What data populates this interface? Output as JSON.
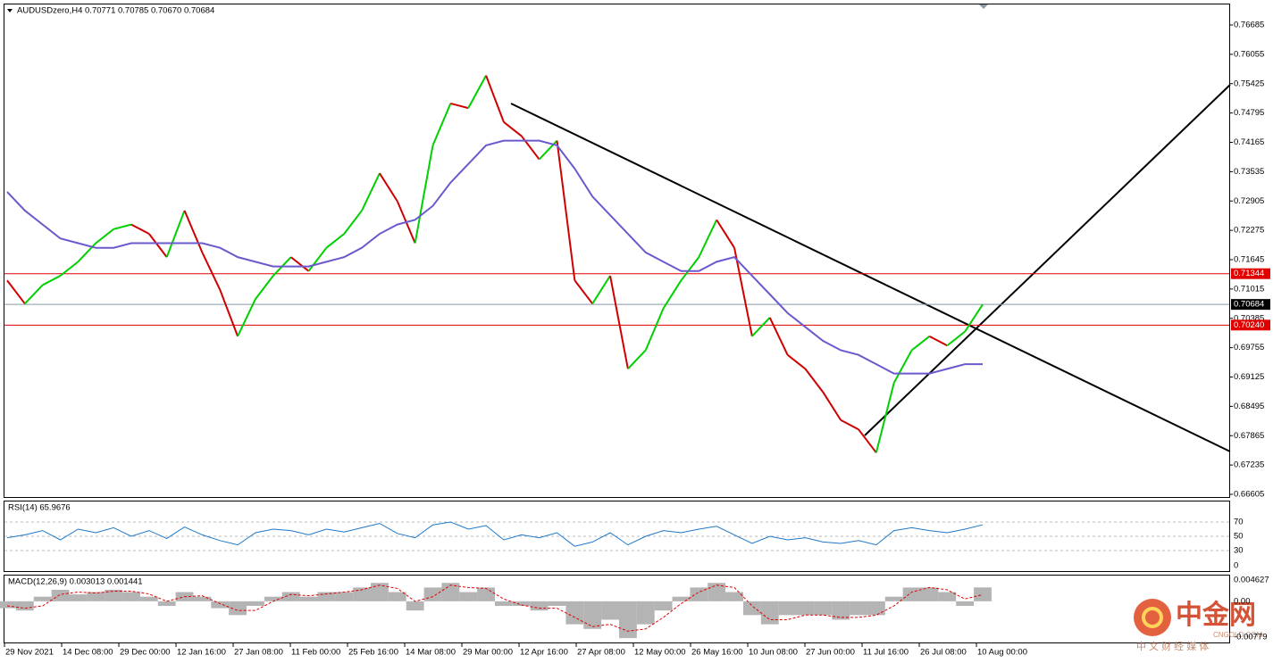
{
  "header": {
    "symbol": "AUDUSDzero,H4  0.70771 0.70785 0.70670 0.70684"
  },
  "main": {
    "ylim": [
      0.66605,
      0.76685
    ],
    "yticks": [
      0.76685,
      0.76055,
      0.75425,
      0.74795,
      0.74165,
      0.73535,
      0.72905,
      0.72275,
      0.71645,
      0.71015,
      0.70385,
      0.69755,
      0.69125,
      0.68495,
      0.67865,
      0.67235,
      0.66605
    ],
    "price_tags": [
      {
        "value": 0.71344,
        "label": "0.71344",
        "color": "#e00000"
      },
      {
        "value": 0.70684,
        "label": "0.70684",
        "color": "#000000"
      },
      {
        "value": 0.7024,
        "label": "0.70240",
        "color": "#e00000"
      }
    ],
    "close": [
      0.712,
      0.707,
      0.711,
      0.713,
      0.716,
      0.72,
      0.723,
      0.724,
      0.722,
      0.717,
      0.727,
      0.718,
      0.71,
      0.7,
      0.708,
      0.713,
      0.717,
      0.714,
      0.719,
      0.722,
      0.727,
      0.735,
      0.729,
      0.72,
      0.741,
      0.75,
      0.749,
      0.756,
      0.746,
      0.743,
      0.738,
      0.742,
      0.712,
      0.707,
      0.713,
      0.693,
      0.697,
      0.706,
      0.712,
      0.717,
      0.725,
      0.719,
      0.7,
      0.704,
      0.696,
      0.693,
      0.688,
      0.682,
      0.68,
      0.675,
      0.69,
      0.697,
      0.7,
      0.698,
      0.701,
      0.70684
    ],
    "ma": [
      0.731,
      0.727,
      0.724,
      0.721,
      0.72,
      0.719,
      0.719,
      0.72,
      0.72,
      0.72,
      0.72,
      0.72,
      0.719,
      0.717,
      0.716,
      0.715,
      0.715,
      0.715,
      0.716,
      0.717,
      0.719,
      0.722,
      0.724,
      0.725,
      0.728,
      0.733,
      0.737,
      0.741,
      0.742,
      0.742,
      0.742,
      0.741,
      0.736,
      0.73,
      0.726,
      0.722,
      0.718,
      0.716,
      0.714,
      0.714,
      0.716,
      0.717,
      0.713,
      0.709,
      0.705,
      0.702,
      0.699,
      0.697,
      0.696,
      0.694,
      0.692,
      0.692,
      0.692,
      0.693,
      0.694,
      0.694
    ]
  },
  "rsi": {
    "label": "RSI(14) 65.9676",
    "ylim": [
      0,
      100
    ],
    "yticks": [
      70,
      50,
      30,
      0
    ],
    "values": [
      48,
      52,
      58,
      45,
      60,
      55,
      62,
      50,
      58,
      47,
      63,
      52,
      44,
      38,
      55,
      60,
      58,
      52,
      60,
      56,
      62,
      68,
      54,
      48,
      66,
      70,
      60,
      65,
      45,
      52,
      48,
      55,
      36,
      42,
      55,
      38,
      50,
      58,
      55,
      60,
      64,
      52,
      40,
      50,
      45,
      48,
      42,
      40,
      44,
      38,
      58,
      62,
      58,
      55,
      60,
      66
    ]
  },
  "macd": {
    "label": "MACD(12,26,9) 0.003013 0.001441",
    "ylim": [
      -0.00779,
      0.004627
    ],
    "yticks": [
      0.004627,
      {
        "value": 0,
        "label": "0.00"
      },
      -0.00779
    ],
    "hist": [
      -0.0015,
      -0.002,
      0.001,
      0.0025,
      0.0015,
      0.002,
      0.0025,
      0.002,
      0.001,
      -0.001,
      0.002,
      0.001,
      -0.0015,
      -0.003,
      -0.001,
      0.001,
      0.002,
      0.001,
      0.002,
      0.002,
      0.003,
      0.004,
      0.002,
      -0.002,
      0.003,
      0.004,
      0.002,
      0.003,
      -0.001,
      -0.001,
      -0.002,
      -0.001,
      -0.005,
      -0.006,
      -0.004,
      -0.008,
      -0.005,
      -0.002,
      0.001,
      0.003,
      0.004,
      0.002,
      -0.003,
      -0.005,
      -0.003,
      -0.003,
      -0.003,
      -0.004,
      -0.003,
      -0.003,
      0.001,
      0.003,
      0.003,
      0.002,
      -0.001,
      0.003013
    ],
    "signal": [
      -0.001,
      -0.0015,
      -0.001,
      0.0015,
      0.002,
      0.0018,
      0.0022,
      0.0022,
      0.0016,
      0,
      0.001,
      0.0012,
      -0.0005,
      -0.002,
      -0.002,
      0,
      0.0015,
      0.0012,
      0.0016,
      0.002,
      0.0025,
      0.0035,
      0.0028,
      0,
      0.001,
      0.0035,
      0.003,
      0.0028,
      0.0005,
      -0.0008,
      -0.0015,
      -0.0015,
      -0.0035,
      -0.0055,
      -0.005,
      -0.0065,
      -0.006,
      -0.0035,
      -0.0005,
      0.002,
      0.0035,
      0.003,
      -0.001,
      -0.004,
      -0.004,
      -0.003,
      -0.003,
      -0.0035,
      -0.0035,
      -0.003,
      -0.001,
      0.002,
      0.003,
      0.0025,
      0.0005,
      0.001441
    ]
  },
  "time_labels": [
    "29 Nov 2021",
    "14 Dec 08:00",
    "29 Dec 00:00",
    "12 Jan 16:00",
    "27 Jan 08:00",
    "11 Feb 00:00",
    "25 Feb 16:00",
    "14 Mar 08:00",
    "29 Mar 00:00",
    "12 Apr 16:00",
    "27 Apr 08:00",
    "12 May 00:00",
    "26 May 16:00",
    "10 Jun 08:00",
    "27 Jun 00:00",
    "11 Jul 16:00",
    "26 Jul 08:00",
    "10 Aug 00:00"
  ],
  "watermark": {
    "logo": "中金网",
    "domain": "CNGOLD.COM",
    "tagline": "中 文 财 经 媒 体"
  }
}
